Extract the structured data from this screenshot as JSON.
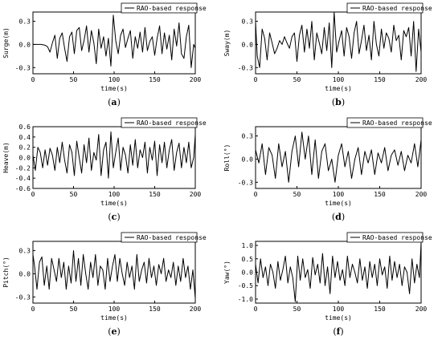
{
  "chart_data": [
    {
      "type": "line",
      "panel": "a",
      "caption": [
        "(",
        "a",
        ")"
      ],
      "xlabel": "time(s)",
      "ylabel": "Surge(m)",
      "xlim": [
        0,
        200
      ],
      "ylim": [
        -0.38,
        0.42
      ],
      "xticks": [
        0,
        50,
        100,
        150,
        200
      ],
      "yticks": [
        -0.3,
        0.0,
        0.3
      ],
      "ytick_labels": [
        "-0.3",
        "0.0",
        "0.3"
      ],
      "legend": "top-right",
      "series": [
        {
          "name": "RAO-based response",
          "x": [
            0,
            5,
            10,
            15,
            18,
            21,
            24,
            27,
            30,
            33,
            36,
            39,
            42,
            45,
            48,
            51,
            54,
            57,
            60,
            63,
            66,
            69,
            72,
            75,
            78,
            81,
            84,
            87,
            90,
            93,
            96,
            99,
            102,
            105,
            108,
            111,
            114,
            117,
            120,
            123,
            126,
            129,
            132,
            135,
            138,
            141,
            144,
            147,
            150,
            153,
            156,
            159,
            162,
            165,
            168,
            171,
            174,
            177,
            180,
            183,
            186,
            189,
            192,
            195,
            198,
            200
          ],
          "y": [
            0,
            0,
            0,
            -0.01,
            -0.03,
            -0.1,
            0.02,
            0.12,
            -0.18,
            0.08,
            0.15,
            -0.05,
            -0.22,
            0.1,
            0.16,
            -0.12,
            0.18,
            0.22,
            -0.08,
            0.05,
            0.24,
            -0.1,
            0.18,
            0.02,
            -0.25,
            0.2,
            -0.05,
            0.1,
            -0.15,
            0.08,
            -0.28,
            0.38,
            0.05,
            -0.12,
            0.12,
            0.2,
            -0.04,
            0.08,
            0.18,
            -0.18,
            0.1,
            -0.05,
            0.16,
            -0.1,
            0.22,
            -0.08,
            0.04,
            0.1,
            -0.14,
            0.08,
            0.24,
            -0.12,
            0.15,
            -0.06,
            0.12,
            -0.2,
            0.2,
            -0.02,
            0.28,
            -0.12,
            -0.18,
            0.1,
            0.25,
            -0.3,
            0.0,
            -0.05
          ]
        }
      ]
    },
    {
      "type": "line",
      "panel": "b",
      "caption": [
        "(",
        "b",
        ")"
      ],
      "xlabel": "time(s)",
      "ylabel": "Sway(m)",
      "xlim": [
        0,
        200
      ],
      "ylim": [
        -0.38,
        0.42
      ],
      "xticks": [
        0,
        50,
        100,
        150,
        200
      ],
      "yticks": [
        -0.3,
        0.0,
        0.3
      ],
      "ytick_labels": [
        "-0.3",
        "0.0",
        "0.3"
      ],
      "legend": "top-right",
      "series": [
        {
          "name": "RAO-based response",
          "x": [
            0,
            2,
            5,
            8,
            11,
            14,
            17,
            20,
            23,
            26,
            29,
            32,
            35,
            38,
            41,
            44,
            47,
            50,
            53,
            56,
            59,
            62,
            65,
            68,
            71,
            74,
            77,
            80,
            83,
            86,
            89,
            92,
            95,
            98,
            101,
            104,
            107,
            110,
            113,
            116,
            119,
            122,
            125,
            128,
            131,
            134,
            137,
            140,
            143,
            146,
            149,
            152,
            155,
            158,
            161,
            164,
            167,
            170,
            173,
            176,
            179,
            182,
            185,
            188,
            191,
            194,
            197,
            200
          ],
          "y": [
            0.3,
            -0.15,
            -0.3,
            0.2,
            0.08,
            -0.2,
            0.15,
            0.02,
            -0.12,
            -0.05,
            0.05,
            0.0,
            0.1,
            0.02,
            -0.05,
            0.1,
            0.15,
            -0.22,
            0.12,
            0.25,
            -0.1,
            0.2,
            -0.05,
            0.3,
            -0.2,
            0.15,
            0.02,
            -0.12,
            0.22,
            -0.08,
            0.28,
            -0.3,
            0.42,
            -0.1,
            0.05,
            0.18,
            -0.15,
            0.22,
            0.1,
            -0.18,
            0.15,
            0.3,
            -0.12,
            0.05,
            0.25,
            -0.08,
            0.12,
            -0.2,
            0.3,
            0.0,
            -0.15,
            0.2,
            -0.05,
            0.15,
            0.08,
            -0.1,
            0.25,
            0.05,
            0.12,
            -0.2,
            0.18,
            0.1,
            0.22,
            -0.15,
            0.3,
            -0.35,
            0.2,
            -0.1
          ]
        }
      ]
    },
    {
      "type": "line",
      "panel": "c",
      "caption": [
        "(",
        "c",
        ")"
      ],
      "xlabel": "time(s)",
      "ylabel": "Heave(m)",
      "xlim": [
        0,
        200
      ],
      "ylim": [
        -0.6,
        0.6
      ],
      "xticks": [
        0,
        50,
        100,
        150,
        200
      ],
      "yticks": [
        -0.6,
        -0.4,
        -0.2,
        0.0,
        0.2,
        0.4,
        0.6
      ],
      "ytick_labels": [
        "-0.6",
        "-0.4",
        "-0.2",
        "0.0",
        "0.2",
        "0.4",
        "0.6"
      ],
      "legend": "top-right",
      "series": [
        {
          "name": "RAO-based response",
          "x": [
            0,
            3,
            6,
            9,
            12,
            15,
            18,
            21,
            24,
            27,
            30,
            33,
            36,
            39,
            42,
            45,
            48,
            51,
            54,
            57,
            60,
            63,
            66,
            69,
            72,
            75,
            78,
            81,
            84,
            87,
            90,
            93,
            96,
            99,
            102,
            105,
            108,
            111,
            114,
            117,
            120,
            123,
            126,
            129,
            132,
            135,
            138,
            141,
            144,
            147,
            150,
            153,
            156,
            159,
            162,
            165,
            168,
            171,
            174,
            177,
            180,
            183,
            186,
            189,
            192,
            195,
            198,
            200
          ],
          "y": [
            0.05,
            -0.25,
            0.2,
            0.1,
            -0.2,
            0.15,
            -0.15,
            0.18,
            0.05,
            -0.25,
            0.2,
            -0.1,
            0.3,
            -0.05,
            -0.3,
            0.25,
            0.1,
            -0.35,
            0.32,
            0.0,
            -0.3,
            0.25,
            -0.1,
            0.38,
            -0.25,
            0.1,
            -0.05,
            0.45,
            -0.35,
            0.15,
            0.3,
            -0.4,
            0.5,
            -0.2,
            0.1,
            0.38,
            -0.25,
            0.2,
            0.05,
            -0.3,
            0.25,
            -0.15,
            0.35,
            -0.2,
            0.15,
            0.0,
            0.3,
            -0.3,
            0.2,
            -0.05,
            0.32,
            -0.35,
            0.25,
            -0.1,
            0.3,
            -0.2,
            0.15,
            0.35,
            -0.25,
            0.1,
            0.28,
            -0.2,
            0.2,
            -0.1,
            0.3,
            -0.2,
            0.0,
            0.45
          ]
        }
      ]
    },
    {
      "type": "line",
      "panel": "d",
      "caption": [
        "(",
        "d",
        ")"
      ],
      "xlabel": "time(s)",
      "ylabel": "Roll(°)",
      "xlim": [
        0,
        200
      ],
      "ylim": [
        -0.38,
        0.42
      ],
      "xticks": [
        0,
        50,
        100,
        150,
        200
      ],
      "yticks": [
        -0.3,
        0.0,
        0.3
      ],
      "ytick_labels": [
        "-0.3",
        "0.0",
        "0.3"
      ],
      "legend": "top-right",
      "series": [
        {
          "name": "RAO-based response",
          "x": [
            0,
            4,
            8,
            12,
            16,
            20,
            24,
            28,
            32,
            36,
            40,
            44,
            48,
            52,
            56,
            60,
            64,
            68,
            72,
            76,
            80,
            84,
            88,
            92,
            96,
            100,
            104,
            108,
            112,
            116,
            120,
            124,
            128,
            132,
            136,
            140,
            144,
            148,
            152,
            156,
            160,
            164,
            168,
            172,
            176,
            180,
            184,
            188,
            192,
            196,
            200
          ],
          "y": [
            0.12,
            -0.05,
            0.2,
            -0.2,
            0.15,
            0.05,
            -0.25,
            0.2,
            -0.1,
            0.1,
            -0.3,
            0.1,
            0.3,
            -0.1,
            0.35,
            0.0,
            0.3,
            -0.2,
            0.25,
            -0.25,
            0.1,
            0.2,
            -0.15,
            0.0,
            -0.3,
            0.05,
            0.2,
            -0.1,
            0.1,
            -0.25,
            0.0,
            0.15,
            -0.2,
            0.1,
            -0.05,
            0.12,
            -0.2,
            0.08,
            -0.05,
            0.15,
            -0.15,
            0.05,
            0.12,
            -0.08,
            0.1,
            -0.15,
            0.05,
            -0.05,
            0.2,
            -0.1,
            0.25
          ]
        }
      ]
    },
    {
      "type": "line",
      "panel": "e",
      "caption": [
        "(",
        "e",
        ")"
      ],
      "xlabel": "time(s)",
      "ylabel": "Pitch(°)",
      "xlim": [
        0,
        200
      ],
      "ylim": [
        -0.38,
        0.42
      ],
      "xticks": [
        0,
        50,
        100,
        150,
        200
      ],
      "yticks": [
        -0.3,
        0.0,
        0.3
      ],
      "ytick_labels": [
        "-0.3",
        "0.0",
        "0.3"
      ],
      "legend": "top-right",
      "series": [
        {
          "name": "RAO-based response",
          "x": [
            0,
            2,
            5,
            8,
            11,
            14,
            17,
            20,
            23,
            26,
            29,
            32,
            35,
            38,
            41,
            44,
            47,
            50,
            53,
            56,
            59,
            62,
            65,
            68,
            71,
            74,
            77,
            80,
            83,
            86,
            89,
            92,
            95,
            98,
            101,
            104,
            107,
            110,
            113,
            116,
            119,
            122,
            125,
            128,
            131,
            134,
            137,
            140,
            143,
            146,
            149,
            152,
            155,
            158,
            161,
            164,
            167,
            170,
            173,
            176,
            179,
            182,
            185,
            188,
            191,
            194,
            197,
            200
          ],
          "y": [
            0.25,
            0.1,
            -0.2,
            0.15,
            0.22,
            -0.15,
            0.1,
            -0.2,
            0.2,
            0.05,
            -0.1,
            0.2,
            -0.05,
            0.15,
            -0.2,
            0.1,
            -0.12,
            0.3,
            -0.1,
            0.2,
            -0.15,
            0.25,
            0.0,
            -0.2,
            0.15,
            -0.05,
            0.25,
            -0.15,
            0.1,
            0.05,
            -0.2,
            0.2,
            -0.1,
            0.1,
            0.25,
            -0.1,
            0.2,
            0.0,
            -0.15,
            0.15,
            -0.05,
            0.1,
            -0.2,
            0.25,
            -0.1,
            0.05,
            0.15,
            -0.12,
            0.2,
            -0.05,
            0.1,
            -0.15,
            0.12,
            0.0,
            0.2,
            -0.1,
            0.05,
            -0.05,
            0.15,
            -0.15,
            0.1,
            -0.1,
            0.2,
            -0.05,
            0.1,
            -0.2,
            0.05,
            -0.32
          ]
        }
      ]
    },
    {
      "type": "line",
      "panel": "f",
      "caption": [
        "(",
        "f",
        ")"
      ],
      "xlabel": "time(s)",
      "ylabel": "Yaw(°)",
      "xlim": [
        0,
        200
      ],
      "ylim": [
        -1.15,
        1.15
      ],
      "xticks": [
        0,
        50,
        100,
        150,
        200
      ],
      "yticks": [
        -1.0,
        -0.5,
        0.0,
        0.5,
        1.0
      ],
      "ytick_labels": [
        "-1.0",
        "-0.5",
        "0.0",
        "0.5",
        "1.0"
      ],
      "legend": "top-right",
      "series": [
        {
          "name": "RAO-based response",
          "x": [
            0,
            3,
            6,
            9,
            12,
            15,
            18,
            21,
            24,
            27,
            30,
            33,
            36,
            39,
            42,
            45,
            48,
            51,
            54,
            57,
            60,
            63,
            66,
            69,
            72,
            75,
            78,
            81,
            84,
            87,
            90,
            93,
            96,
            99,
            102,
            105,
            108,
            111,
            114,
            117,
            120,
            123,
            126,
            129,
            132,
            135,
            138,
            141,
            144,
            147,
            150,
            153,
            156,
            159,
            162,
            165,
            168,
            171,
            174,
            177,
            180,
            183,
            186,
            189,
            192,
            195,
            198,
            200
          ],
          "y": [
            0.3,
            -0.4,
            0.5,
            -0.2,
            0.2,
            -0.5,
            0.3,
            0.0,
            -0.6,
            0.4,
            -0.3,
            0.1,
            0.6,
            -0.4,
            0.2,
            -0.2,
            -1.1,
            0.6,
            -0.3,
            0.5,
            -0.2,
            0.1,
            -0.6,
            0.55,
            -0.1,
            0.3,
            -0.4,
            0.7,
            -0.5,
            0.2,
            -0.8,
            0.6,
            -0.2,
            0.4,
            -0.3,
            0.1,
            -0.5,
            0.6,
            -0.2,
            0.3,
            0.0,
            -0.4,
            0.5,
            -0.3,
            0.2,
            -0.6,
            0.4,
            -0.2,
            0.3,
            -0.5,
            0.5,
            -0.1,
            0.2,
            -0.6,
            0.6,
            -0.3,
            0.4,
            -0.2,
            0.3,
            -0.5,
            0.2,
            0.0,
            -0.8,
            0.5,
            -0.4,
            0.3,
            -0.2,
            1.1
          ]
        }
      ]
    }
  ]
}
